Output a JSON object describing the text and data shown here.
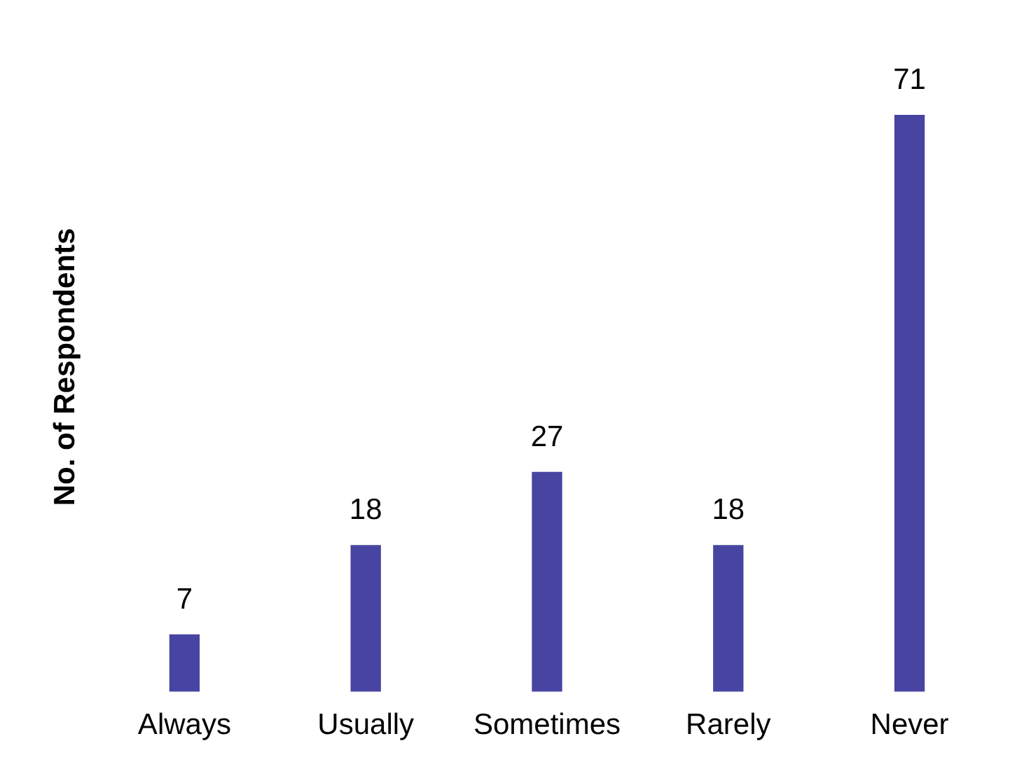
{
  "chart_data": {
    "type": "bar",
    "ylabel": "No. of Respondents",
    "categories": [
      "Always",
      "Usually",
      "Sometimes",
      "Rarely",
      "Never"
    ],
    "values": [
      7,
      18,
      27,
      18,
      71
    ],
    "color": "#4845a2",
    "data_labels": true
  }
}
